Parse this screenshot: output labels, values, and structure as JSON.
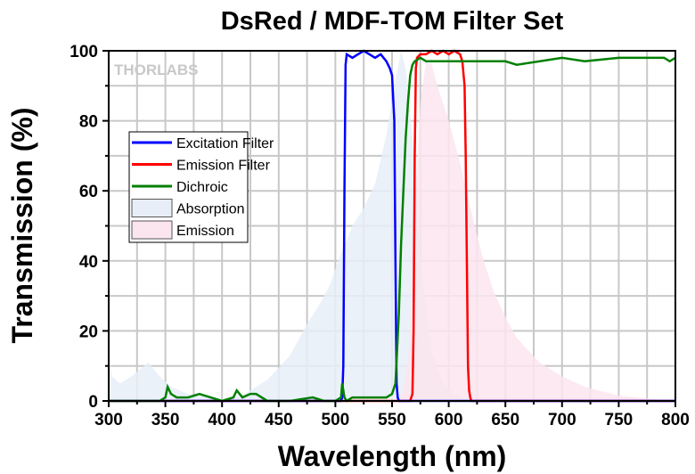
{
  "chart_data": {
    "type": "line",
    "title": "DsRed / MDF-TOM Filter Set",
    "xlabel": "Wavelength (nm)",
    "ylabel": "Transmission (%)",
    "xlim": [
      300,
      800
    ],
    "ylim": [
      0,
      100
    ],
    "xticks": [
      300,
      350,
      400,
      450,
      500,
      550,
      600,
      650,
      700,
      750,
      800
    ],
    "yticks": [
      0,
      20,
      40,
      60,
      80,
      100
    ],
    "grid": true,
    "legend_position": "center-left",
    "watermark": "THORLABS",
    "series": [
      {
        "name": "Excitation Filter",
        "kind": "line",
        "color": "#0000ff",
        "x": [
          300,
          505,
          506,
          507,
          508,
          509,
          510,
          515,
          520,
          525,
          530,
          535,
          540,
          545,
          548,
          550,
          552,
          553,
          554,
          555,
          556,
          557,
          560,
          800
        ],
        "y": [
          0,
          0,
          1,
          10,
          60,
          96,
          99,
          98,
          99,
          100,
          99,
          98,
          99,
          97,
          95,
          93,
          80,
          40,
          5,
          1,
          0,
          0,
          0,
          0
        ]
      },
      {
        "name": "Emission Filter",
        "kind": "line",
        "color": "#ff0000",
        "x": [
          300,
          566,
          568,
          569,
          570,
          571,
          572,
          575,
          580,
          585,
          590,
          595,
          600,
          605,
          610,
          612,
          614,
          615,
          616,
          617,
          618,
          619,
          620,
          800
        ],
        "y": [
          0,
          0,
          2,
          20,
          70,
          95,
          98,
          99,
          99,
          100,
          99,
          100,
          99,
          100,
          99,
          97,
          90,
          70,
          40,
          10,
          3,
          1,
          0,
          0
        ]
      },
      {
        "name": "Dichroic",
        "kind": "line",
        "color": "#008000",
        "x": [
          300,
          345,
          350,
          352,
          355,
          360,
          370,
          380,
          400,
          410,
          413,
          418,
          425,
          430,
          440,
          450,
          460,
          480,
          490,
          500,
          505,
          506,
          508,
          510,
          515,
          520,
          530,
          540,
          545,
          550,
          553,
          556,
          558,
          560,
          562,
          564,
          566,
          568,
          570,
          575,
          580,
          590,
          600,
          620,
          650,
          660,
          700,
          720,
          750,
          790,
          795,
          800
        ],
        "y": [
          0,
          0,
          1,
          4,
          2,
          1,
          1,
          2,
          0,
          1,
          3,
          1,
          2,
          2,
          0,
          0,
          0,
          1,
          0,
          0,
          1,
          5,
          1,
          0,
          1,
          1,
          1,
          1,
          1,
          2,
          5,
          25,
          45,
          60,
          75,
          85,
          93,
          96,
          97,
          98,
          97,
          97,
          97,
          97,
          97,
          96,
          98,
          97,
          98,
          98,
          97,
          98
        ]
      },
      {
        "name": "Absorption",
        "kind": "area",
        "color": "#e8eef8",
        "x": [
          300,
          303,
          310,
          320,
          335,
          345,
          355,
          370,
          390,
          400,
          420,
          440,
          460,
          475,
          485,
          495,
          505,
          515,
          525,
          535,
          545,
          552,
          558,
          562,
          568,
          575,
          585,
          595,
          605,
          620,
          800
        ],
        "y": [
          12,
          7,
          5,
          7,
          11,
          7,
          4,
          2,
          1,
          0.5,
          2,
          6,
          13,
          22,
          27,
          33,
          42,
          50,
          55,
          62,
          76,
          90,
          100,
          95,
          75,
          40,
          14,
          5,
          2,
          0,
          0
        ]
      },
      {
        "name": "Emission",
        "kind": "area",
        "color": "#fbe5ee",
        "x": [
          300,
          555,
          560,
          565,
          570,
          575,
          580,
          585,
          590,
          600,
          610,
          620,
          630,
          640,
          650,
          660,
          680,
          700,
          720,
          750,
          780,
          800
        ],
        "y": [
          0,
          0,
          3,
          15,
          55,
          85,
          97,
          96,
          90,
          80,
          68,
          54,
          41,
          31,
          24,
          18,
          11,
          7,
          4,
          1.5,
          0.5,
          0
        ]
      }
    ]
  }
}
